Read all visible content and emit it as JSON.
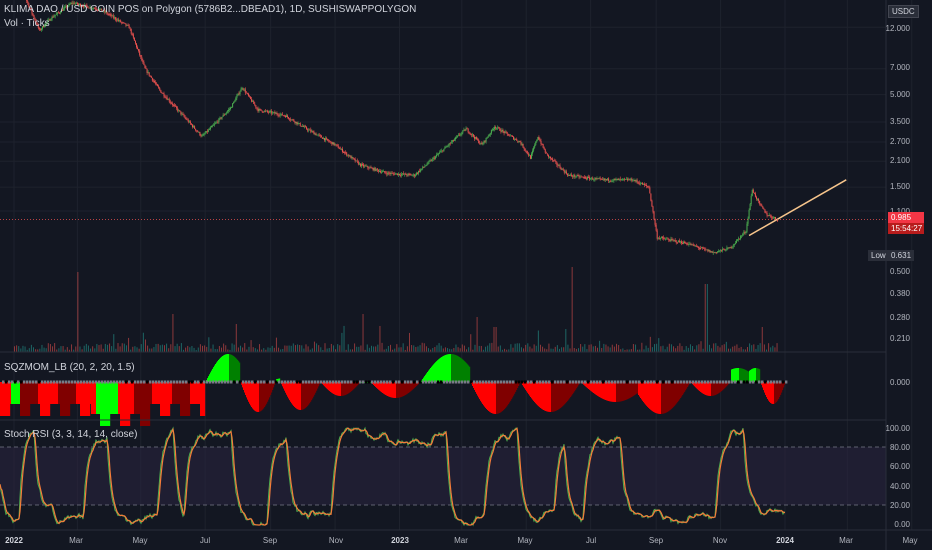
{
  "header": {
    "title": "KLIMA DAO / USD COIN POS on Polygon (5786B2...DBEAD1), 1D, SUSHISWAPPOLYGON",
    "volume_label": "Vol · Ticks"
  },
  "price_axis": {
    "currency": "USDC",
    "ticks": [
      "12.000",
      "7.000",
      "5.000",
      "3.500",
      "2.700",
      "2.100",
      "1.500",
      "1.100",
      "0.500",
      "0.380",
      "0.280",
      "0.210"
    ],
    "current_price": "0.985",
    "countdown": "15:54:27",
    "low_label": "Low",
    "low_value": "0.631"
  },
  "indicators": {
    "sqzmom": {
      "label": "SQZMOM_LB (20, 2, 20, 1.5)",
      "zero_tick": "0.000"
    },
    "stoch_rsi": {
      "label": "Stoch RSI (3, 3, 14, 14, close)",
      "ticks": [
        "100.00",
        "80.00",
        "60.00",
        "40.00",
        "20.00",
        "0.00"
      ]
    }
  },
  "time_axis": {
    "labels": [
      "2022",
      "Mar",
      "May",
      "Jul",
      "Sep",
      "Nov",
      "2023",
      "Mar",
      "May",
      "Jul",
      "Sep",
      "Nov",
      "2024",
      "Mar",
      "May"
    ]
  },
  "colors": {
    "up": "#26a69a",
    "up_candle": "#4caf50",
    "down": "#ef5350",
    "trendline": "#f7c58c",
    "rsi_k": "#4caf50",
    "rsi_d": "#f57c3a",
    "sqz_bright_green": "#00ff00",
    "sqz_dark_green": "#008000",
    "sqz_bright_red": "#ff0000",
    "sqz_dark_red": "#800000"
  },
  "chart_data": {
    "type": "candlestick",
    "symbol": "KLIMA DAO / USD COIN POS on Polygon",
    "interval": "1D",
    "exchange": "SUSHISWAPPOLYGON",
    "y_scale": "log",
    "price_path": [
      [
        "2022-01-01",
        25.0
      ],
      [
        "2022-01-25",
        11.5
      ],
      [
        "2022-02-05",
        13.5
      ],
      [
        "2022-02-25",
        16.5
      ],
      [
        "2022-03-25",
        15.0
      ],
      [
        "2022-04-20",
        12.0
      ],
      [
        "2022-05-05",
        7.0
      ],
      [
        "2022-05-20",
        5.2
      ],
      [
        "2022-06-10",
        3.8
      ],
      [
        "2022-06-28",
        2.9
      ],
      [
        "2022-07-10",
        3.4
      ],
      [
        "2022-07-25",
        4.2
      ],
      [
        "2022-08-05",
        5.5
      ],
      [
        "2022-08-20",
        4.1
      ],
      [
        "2022-09-15",
        3.8
      ],
      [
        "2022-10-05",
        3.2
      ],
      [
        "2022-11-01",
        2.6
      ],
      [
        "2022-11-25",
        2.0
      ],
      [
        "2022-12-20",
        1.8
      ],
      [
        "2023-01-15",
        1.75
      ],
      [
        "2023-02-10",
        2.4
      ],
      [
        "2023-03-05",
        3.2
      ],
      [
        "2023-03-20",
        2.6
      ],
      [
        "2023-04-01",
        3.3
      ],
      [
        "2023-04-25",
        2.7
      ],
      [
        "2023-05-05",
        2.2
      ],
      [
        "2023-05-12",
        2.9
      ],
      [
        "2023-05-20",
        2.3
      ],
      [
        "2023-06-10",
        1.75
      ],
      [
        "2023-07-10",
        1.65
      ],
      [
        "2023-08-10",
        1.65
      ],
      [
        "2023-08-25",
        1.5
      ],
      [
        "2023-09-02",
        0.78
      ],
      [
        "2023-10-01",
        0.72
      ],
      [
        "2023-10-25",
        0.64
      ],
      [
        "2023-11-10",
        0.68
      ],
      [
        "2023-11-25",
        0.85
      ],
      [
        "2023-12-01",
        1.45
      ],
      [
        "2023-12-08",
        1.2
      ],
      [
        "2023-12-15",
        1.05
      ],
      [
        "2023-12-25",
        0.985
      ]
    ],
    "trendline": [
      [
        "2023-11-28",
        0.8
      ],
      [
        "2024-02-28",
        1.65
      ]
    ],
    "current_price": 0.985,
    "low": 0.631,
    "stoch_rsi_levels": [
      80,
      20
    ]
  }
}
